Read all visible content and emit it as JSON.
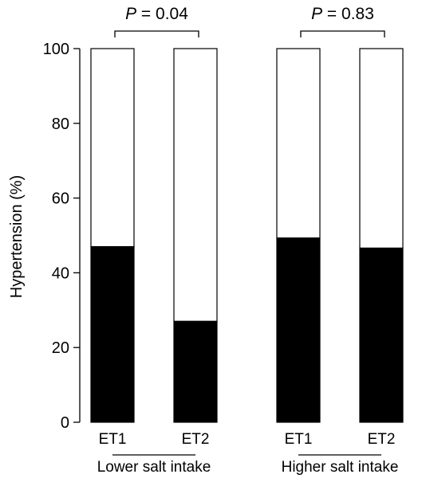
{
  "chart_data": {
    "type": "bar",
    "stacked": true,
    "title": "",
    "ylabel": "Hypertension (%)",
    "ylim": [
      0,
      100
    ],
    "yticks": [
      0,
      20,
      40,
      60,
      80,
      100
    ],
    "grid": false,
    "groups": [
      {
        "label": "Lower salt intake",
        "p_prefix": "P",
        "p_text": " = 0.04",
        "bars": [
          {
            "category": "ET1",
            "hypertension": 47,
            "total": 100
          },
          {
            "category": "ET2",
            "hypertension": 27,
            "total": 100
          }
        ]
      },
      {
        "label": "Higher salt intake",
        "p_prefix": "P",
        "p_text": " = 0.83",
        "bars": [
          {
            "category": "ET1",
            "hypertension": 49.3,
            "total": 100
          },
          {
            "category": "ET2",
            "hypertension": 46.6,
            "total": 100
          }
        ]
      }
    ],
    "colors": {
      "hypertension": "#000000",
      "remainder": "#ffffff",
      "outline": "#000000"
    }
  }
}
